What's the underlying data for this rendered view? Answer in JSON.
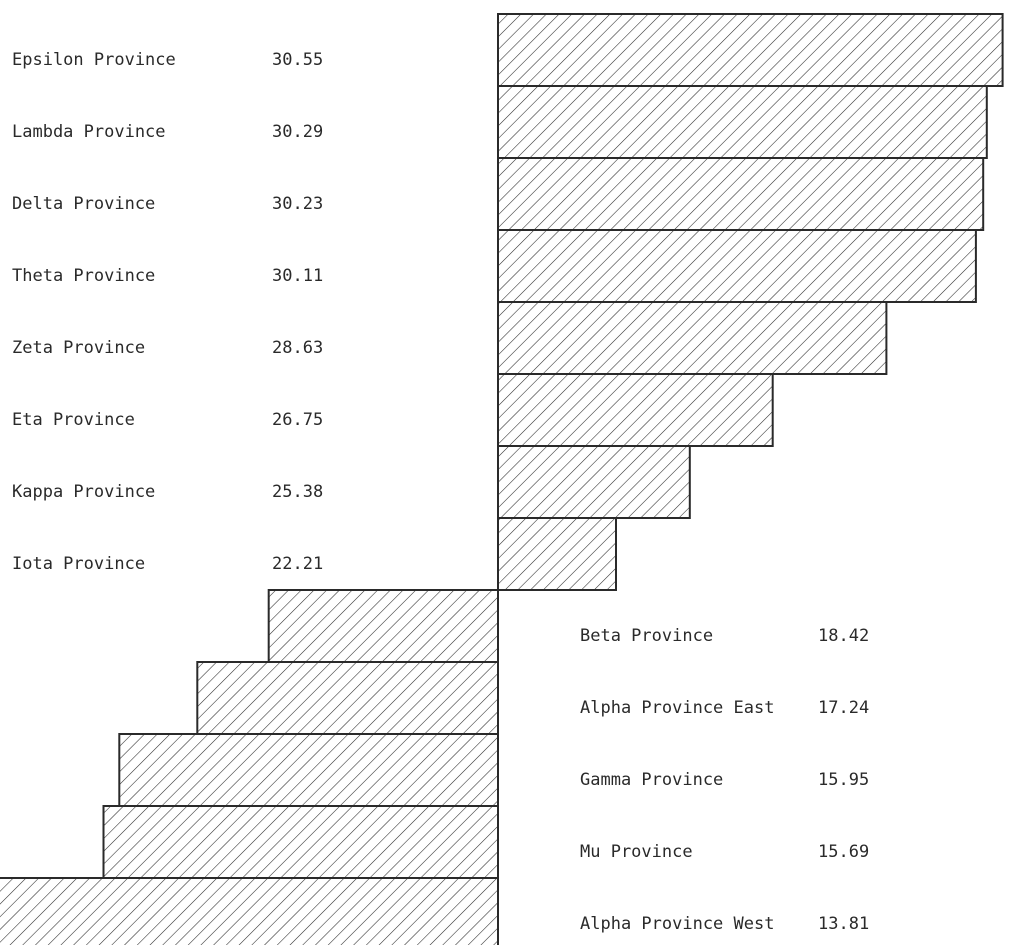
{
  "chart_data": {
    "type": "bar",
    "orientation": "horizontal-diverging",
    "baseline": 22.21,
    "title": "",
    "xlabel": "",
    "ylabel": "",
    "grid": false,
    "fill_pattern": "diagonal-hatch",
    "bar_color": "#2a2a2a",
    "background": "#ffffff",
    "categories": [
      "Epsilon Province",
      "Lambda Province",
      "Delta Province",
      "Theta Province",
      "Zeta Province",
      "Eta Province",
      "Kappa Province",
      "Iota Province",
      "Beta Province",
      "Alpha Province East",
      "Gamma Province",
      "Mu Province",
      "Alpha Province West"
    ],
    "values": [
      30.55,
      30.29,
      30.23,
      30.11,
      28.63,
      26.75,
      25.38,
      22.21,
      18.42,
      17.24,
      15.95,
      15.69,
      13.81
    ],
    "value_labels": [
      "30.55",
      "30.29",
      "30.23",
      "30.11",
      "28.63",
      "26.75",
      "25.38",
      "22.21",
      "18.42",
      "17.24",
      "15.95",
      "15.69",
      "13.81"
    ]
  }
}
